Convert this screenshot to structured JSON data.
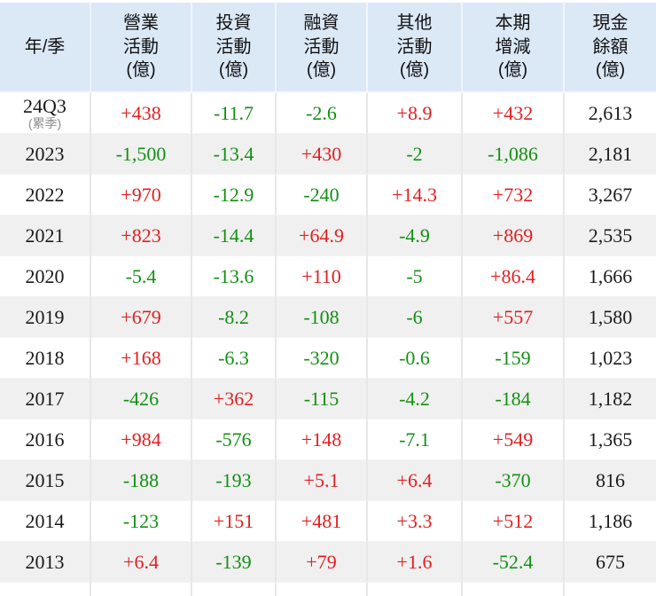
{
  "colors": {
    "positive": "#e02020",
    "negative": "#129012",
    "neutral": "#1a1a1a",
    "header_bg": "#dbe8f6",
    "alt_row_bg": "#f0f0f0"
  },
  "table": {
    "columns": [
      {
        "id": "year",
        "lines": [
          "年/季"
        ]
      },
      {
        "id": "operating",
        "lines": [
          "營業",
          "活動",
          "(億)"
        ]
      },
      {
        "id": "investing",
        "lines": [
          "投資",
          "活動",
          "(億)"
        ]
      },
      {
        "id": "financing",
        "lines": [
          "融資",
          "活動",
          "(億)"
        ]
      },
      {
        "id": "other",
        "lines": [
          "其他",
          "活動",
          "(億)"
        ]
      },
      {
        "id": "net-change",
        "lines": [
          "本期",
          "增減",
          "(億)"
        ]
      },
      {
        "id": "cash-balance",
        "lines": [
          "現金",
          "餘額",
          "(億)"
        ]
      }
    ],
    "rows": [
      {
        "year": "24Q3",
        "note": "(累季)",
        "values": [
          {
            "t": "+438",
            "s": "pos"
          },
          {
            "t": "-11.7",
            "s": "neg"
          },
          {
            "t": "-2.6",
            "s": "neg"
          },
          {
            "t": "+8.9",
            "s": "pos"
          },
          {
            "t": "+432",
            "s": "pos"
          }
        ],
        "balance": "2,613"
      },
      {
        "year": "2023",
        "note": "",
        "values": [
          {
            "t": "-1,500",
            "s": "neg"
          },
          {
            "t": "-13.4",
            "s": "neg"
          },
          {
            "t": "+430",
            "s": "pos"
          },
          {
            "t": "-2",
            "s": "neg"
          },
          {
            "t": "-1,086",
            "s": "neg"
          }
        ],
        "balance": "2,181"
      },
      {
        "year": "2022",
        "note": "",
        "values": [
          {
            "t": "+970",
            "s": "pos"
          },
          {
            "t": "-12.9",
            "s": "neg"
          },
          {
            "t": "-240",
            "s": "neg"
          },
          {
            "t": "+14.3",
            "s": "pos"
          },
          {
            "t": "+732",
            "s": "pos"
          }
        ],
        "balance": "3,267"
      },
      {
        "year": "2021",
        "note": "",
        "values": [
          {
            "t": "+823",
            "s": "pos"
          },
          {
            "t": "-14.4",
            "s": "neg"
          },
          {
            "t": "+64.9",
            "s": "pos"
          },
          {
            "t": "-4.9",
            "s": "neg"
          },
          {
            "t": "+869",
            "s": "pos"
          }
        ],
        "balance": "2,535"
      },
      {
        "year": "2020",
        "note": "",
        "values": [
          {
            "t": "-5.4",
            "s": "neg"
          },
          {
            "t": "-13.6",
            "s": "neg"
          },
          {
            "t": "+110",
            "s": "pos"
          },
          {
            "t": "-5",
            "s": "neg"
          },
          {
            "t": "+86.4",
            "s": "pos"
          }
        ],
        "balance": "1,666"
      },
      {
        "year": "2019",
        "note": "",
        "values": [
          {
            "t": "+679",
            "s": "pos"
          },
          {
            "t": "-8.2",
            "s": "neg"
          },
          {
            "t": "-108",
            "s": "neg"
          },
          {
            "t": "-6",
            "s": "neg"
          },
          {
            "t": "+557",
            "s": "pos"
          }
        ],
        "balance": "1,580"
      },
      {
        "year": "2018",
        "note": "",
        "values": [
          {
            "t": "+168",
            "s": "pos"
          },
          {
            "t": "-6.3",
            "s": "neg"
          },
          {
            "t": "-320",
            "s": "neg"
          },
          {
            "t": "-0.6",
            "s": "neg"
          },
          {
            "t": "-159",
            "s": "neg"
          }
        ],
        "balance": "1,023"
      },
      {
        "year": "2017",
        "note": "",
        "values": [
          {
            "t": "-426",
            "s": "neg"
          },
          {
            "t": "+362",
            "s": "pos"
          },
          {
            "t": "-115",
            "s": "neg"
          },
          {
            "t": "-4.2",
            "s": "neg"
          },
          {
            "t": "-184",
            "s": "neg"
          }
        ],
        "balance": "1,182"
      },
      {
        "year": "2016",
        "note": "",
        "values": [
          {
            "t": "+984",
            "s": "pos"
          },
          {
            "t": "-576",
            "s": "neg"
          },
          {
            "t": "+148",
            "s": "pos"
          },
          {
            "t": "-7.1",
            "s": "neg"
          },
          {
            "t": "+549",
            "s": "pos"
          }
        ],
        "balance": "1,365"
      },
      {
        "year": "2015",
        "note": "",
        "values": [
          {
            "t": "-188",
            "s": "neg"
          },
          {
            "t": "-193",
            "s": "neg"
          },
          {
            "t": "+5.1",
            "s": "pos"
          },
          {
            "t": "+6.4",
            "s": "pos"
          },
          {
            "t": "-370",
            "s": "neg"
          }
        ],
        "balance": "816"
      },
      {
        "year": "2014",
        "note": "",
        "values": [
          {
            "t": "-123",
            "s": "neg"
          },
          {
            "t": "+151",
            "s": "pos"
          },
          {
            "t": "+481",
            "s": "pos"
          },
          {
            "t": "+3.3",
            "s": "pos"
          },
          {
            "t": "+512",
            "s": "pos"
          }
        ],
        "balance": "1,186"
      },
      {
        "year": "2013",
        "note": "",
        "values": [
          {
            "t": "+6.4",
            "s": "pos"
          },
          {
            "t": "-139",
            "s": "neg"
          },
          {
            "t": "+79",
            "s": "pos"
          },
          {
            "t": "+1.6",
            "s": "pos"
          },
          {
            "t": "-52.4",
            "s": "neg"
          }
        ],
        "balance": "675"
      }
    ]
  }
}
